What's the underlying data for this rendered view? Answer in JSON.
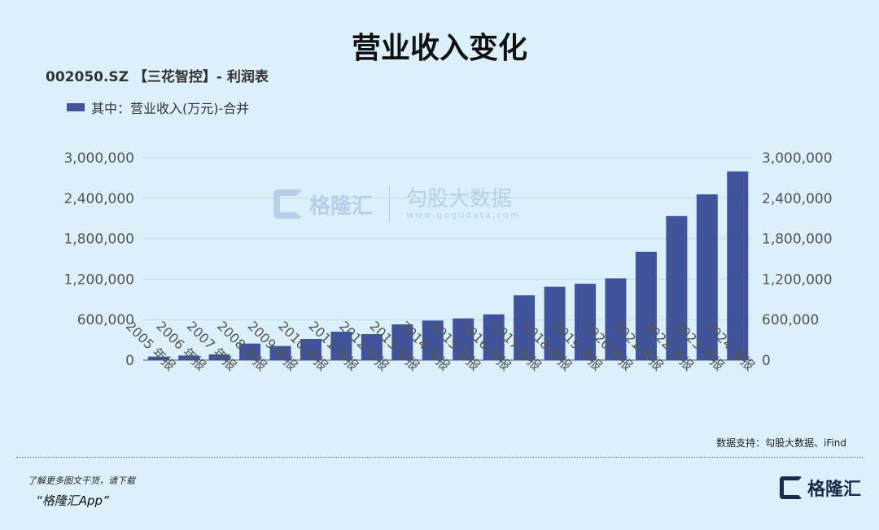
{
  "header": {
    "title": "营业收入变化",
    "subtitle": "002050.SZ 【三花智控】- 利润表"
  },
  "watermark": {
    "brand": "格隆汇",
    "brand2": "勾股大数据",
    "url": "www.gogudata.com"
  },
  "footer": {
    "source": "数据支持：勾股大数据、iFind",
    "promo1": "了解更多图文干货，请下载",
    "promo2": "“格隆汇App”",
    "logo": "格隆汇"
  },
  "colors": {
    "bar": "#41539a",
    "background": "#dbf0fb",
    "grid": "#bcdcea"
  },
  "chart_data": {
    "type": "bar",
    "title": "营业收入变化",
    "legend": "其中：营业收入(万元)-合并",
    "legend_position": "top-left",
    "categories": [
      "2005 年报",
      "2006 年报",
      "2007 年报",
      "2008 年报",
      "2009 年报",
      "2010 年报",
      "2011 年报",
      "2012 年报",
      "2013 年报",
      "2014 年报",
      "2015 年报",
      "2016 年报",
      "2017 年报",
      "2018 年报",
      "2019 年报",
      "2020 年报",
      "2021 年报",
      "2022 年报",
      "2023 年报",
      "2024 年报"
    ],
    "series": [
      {
        "name": "其中：营业收入(万元)-合并",
        "values": [
          52000,
          68000,
          84000,
          245000,
          209000,
          313000,
          421000,
          385000,
          530000,
          586000,
          618000,
          678000,
          960000,
          1088000,
          1132000,
          1212000,
          1605000,
          2135000,
          2456000,
          2797000
        ]
      }
    ],
    "ylim": [
      0,
      3000000
    ],
    "yticks": [
      "0",
      "600,000",
      "1,200,000",
      "1,800,000",
      "2,400,000",
      "3,000,000"
    ],
    "ytick_values": [
      0,
      600000,
      1200000,
      1800000,
      2400000,
      3000000
    ],
    "grid": true,
    "dual_axis_labels": true
  }
}
